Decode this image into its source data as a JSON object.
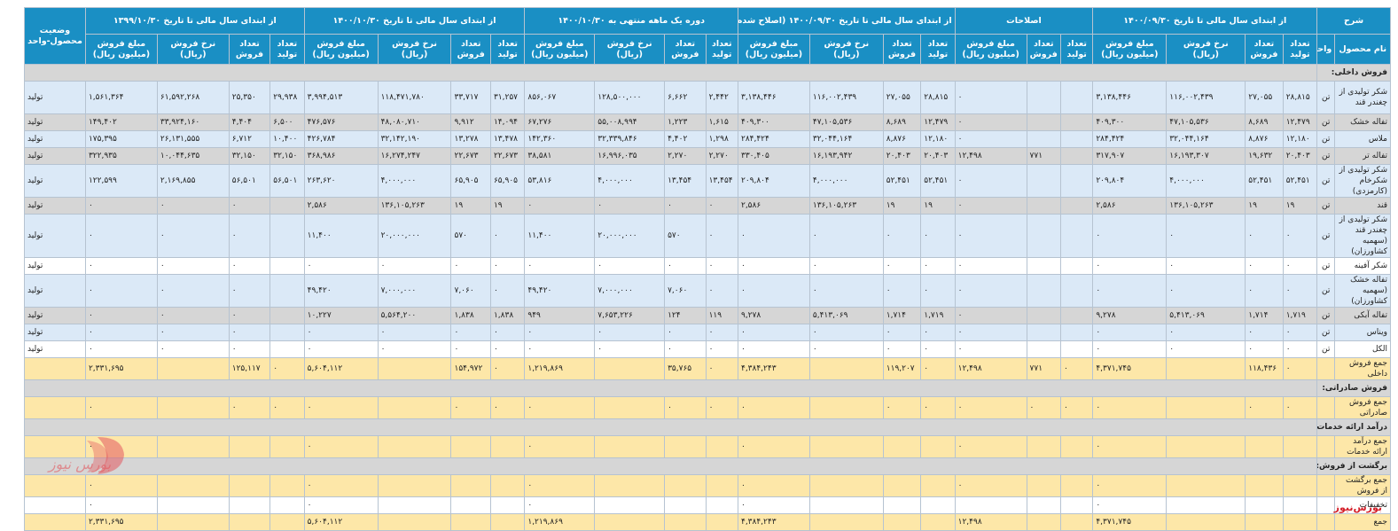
{
  "header": {
    "group_title_sharh": "شرح",
    "group_title_status": "وضعیت محصول-واحد",
    "groups": [
      "از ابتدای سال مالی تا تاریخ ۱۴۰۰/۰۹/۳۰",
      "اصلاحات",
      "از ابتدای سال مالی تا تاریخ ۱۴۰۰/۰۹/۳۰ (اصلاح شده)",
      "دوره یک ماهه منتهی به ۱۴۰۰/۱۰/۳۰",
      "از ابتدای سال مالی تا تاریخ ۱۴۰۰/۱۰/۳۰",
      "از ابتدای سال مالی تا تاریخ ۱۳۹۹/۱۰/۳۰"
    ],
    "col_product": "نام محصول",
    "col_unit": "واحد",
    "col_prod_qty": "تعداد تولید",
    "col_sale_qty": "تعداد فروش",
    "col_rate": "نرخ فروش (ریال)",
    "col_amount": "مبلغ فروش (میلیون ریال)"
  },
  "sections": {
    "domestic": "فروش داخلی:",
    "export": "فروش صادراتی:",
    "services": "درآمد ارائه خدمات:",
    "returns": "برگشت از فروش:"
  },
  "rows": [
    {
      "name": "شکر تولیدی از چغندر قند",
      "unit": "تن",
      "v": [
        "۲۸,۸۱۵",
        "۲۷,۰۵۵",
        "۱۱۶,۰۰۲,۴۳۹",
        "۳,۱۳۸,۴۴۶",
        "",
        "",
        "۰",
        "۲۸,۸۱۵",
        "۲۷,۰۵۵",
        "۱۱۶,۰۰۲,۴۳۹",
        "۳,۱۳۸,۴۴۶",
        "۲,۴۴۲",
        "۶,۶۶۲",
        "۱۲۸,۵۰۰,۰۰۰",
        "۸۵۶,۰۶۷",
        "۳۱,۲۵۷",
        "۳۳,۷۱۷",
        "۱۱۸,۴۷۱,۷۸۰",
        "۳,۹۹۴,۵۱۳",
        "۲۹,۹۳۸",
        "۲۵,۳۵۰",
        "۶۱,۵۹۲,۲۶۸",
        "۱,۵۶۱,۳۶۴"
      ],
      "status": "تولید"
    },
    {
      "name": "تفاله خشک",
      "unit": "تن",
      "v": [
        "۱۲,۴۷۹",
        "۸,۶۸۹",
        "۴۷,۱۰۵,۵۳۶",
        "۴۰۹,۳۰۰",
        "",
        "",
        "۰",
        "۱۲,۴۷۹",
        "۸,۶۸۹",
        "۴۷,۱۰۵,۵۳۶",
        "۴۰۹,۳۰۰",
        "۱,۶۱۵",
        "۱,۲۲۳",
        "۵۵,۰۰۸,۹۹۴",
        "۶۷,۲۷۶",
        "۱۴,۰۹۴",
        "۹,۹۱۲",
        "۴۸,۰۸۰,۷۱۰",
        "۴۷۶,۵۷۶",
        "۶,۵۰۰",
        "۴,۴۰۴",
        "۳۳,۹۲۴,۱۶۰",
        "۱۴۹,۴۰۲"
      ],
      "status": "تولید"
    },
    {
      "name": "ملاس",
      "unit": "تن",
      "v": [
        "۱۲,۱۸۰",
        "۸,۸۷۶",
        "۳۲,۰۴۴,۱۶۴",
        "۲۸۴,۴۲۴",
        "",
        "",
        "۰",
        "۱۲,۱۸۰",
        "۸,۸۷۶",
        "۳۲,۰۴۴,۱۶۴",
        "۲۸۴,۴۲۴",
        "۱,۲۹۸",
        "۴,۴۰۲",
        "۳۲,۳۳۹,۸۴۶",
        "۱۴۲,۳۶۰",
        "۱۳,۴۷۸",
        "۱۳,۲۷۸",
        "۳۲,۱۴۲,۱۹۰",
        "۴۲۶,۷۸۴",
        "۱۰,۴۰۰",
        "۶,۷۱۲",
        "۲۶,۱۳۱,۵۵۵",
        "۱۷۵,۳۹۵"
      ],
      "status": "تولید"
    },
    {
      "name": "تفاله تر",
      "unit": "تن",
      "v": [
        "۲۰,۴۰۳",
        "۱۹,۶۳۲",
        "۱۶,۱۹۳,۳۰۷",
        "۳۱۷,۹۰۷",
        "",
        "۷۷۱",
        "۱۲,۴۹۸",
        "۲۰,۴۰۳",
        "۲۰,۴۰۳",
        "۱۶,۱۹۳,۹۴۲",
        "۳۳۰,۴۰۵",
        "۲,۲۷۰",
        "۲,۲۷۰",
        "۱۶,۹۹۶,۰۳۵",
        "۳۸,۵۸۱",
        "۲۲,۶۷۳",
        "۲۲,۶۷۳",
        "۱۶,۲۷۴,۲۴۷",
        "۳۶۸,۹۸۶",
        "۳۲,۱۵۰",
        "۳۲,۱۵۰",
        "۱۰,۰۴۴,۶۳۵",
        "۳۲۲,۹۳۵"
      ],
      "status": "تولید"
    },
    {
      "name": "شکر تولیدی از شکرخام (کارمزدی)",
      "unit": "تن",
      "v": [
        "۵۲,۴۵۱",
        "۵۲,۴۵۱",
        "۴,۰۰۰,۰۰۰",
        "۲۰۹,۸۰۴",
        "",
        "",
        "۰",
        "۵۲,۴۵۱",
        "۵۲,۴۵۱",
        "۴,۰۰۰,۰۰۰",
        "۲۰۹,۸۰۴",
        "۱۳,۴۵۴",
        "۱۳,۴۵۴",
        "۴,۰۰۰,۰۰۰",
        "۵۳,۸۱۶",
        "۶۵,۹۰۵",
        "۶۵,۹۰۵",
        "۴,۰۰۰,۰۰۰",
        "۲۶۳,۶۲۰",
        "۵۶,۵۰۱",
        "۵۶,۵۰۱",
        "۲,۱۶۹,۸۵۵",
        "۱۲۲,۵۹۹"
      ],
      "status": "تولید"
    },
    {
      "name": "قند",
      "unit": "تن",
      "v": [
        "۱۹",
        "۱۹",
        "۱۳۶,۱۰۵,۲۶۳",
        "۲,۵۸۶",
        "",
        "",
        "۰",
        "۱۹",
        "۱۹",
        "۱۳۶,۱۰۵,۲۶۳",
        "۲,۵۸۶",
        "۰",
        "۰",
        "۰",
        "۰",
        "۱۹",
        "۱۹",
        "۱۳۶,۱۰۵,۲۶۳",
        "۲,۵۸۶",
        "",
        "۰",
        "۰",
        "۰"
      ],
      "status": "تولید"
    },
    {
      "name": "شکر تولیدی از چغندر قند (سهمیه کشاورزان)",
      "unit": "تن",
      "v": [
        "۰",
        "۰",
        "۰",
        "۰",
        "",
        "",
        "۰",
        "۰",
        "۰",
        "۰",
        "۰",
        "۰",
        "۵۷۰",
        "۲۰,۰۰۰,۰۰۰",
        "۱۱,۴۰۰",
        "۰",
        "۵۷۰",
        "۲۰,۰۰۰,۰۰۰",
        "۱۱,۴۰۰",
        "",
        "۰",
        "۰",
        "۰"
      ],
      "status": "تولید"
    },
    {
      "name": "شکر آفینه",
      "unit": "تن",
      "v": [
        "۰",
        "۰",
        "۰",
        "۰",
        "",
        "",
        "۰",
        "۰",
        "۰",
        "۰",
        "۰",
        "۰",
        "۰",
        "۰",
        "۰",
        "۰",
        "۰",
        "۰",
        "۰",
        "",
        "۰",
        "۰",
        "۰"
      ],
      "status": "تولید"
    },
    {
      "name": "تفاله خشک (سهمیه کشاورزان)",
      "unit": "تن",
      "v": [
        "۰",
        "۰",
        "۰",
        "۰",
        "",
        "",
        "۰",
        "۰",
        "۰",
        "۰",
        "۰",
        "۰",
        "۷,۰۶۰",
        "۷,۰۰۰,۰۰۰",
        "۴۹,۴۲۰",
        "۰",
        "۷,۰۶۰",
        "۷,۰۰۰,۰۰۰",
        "۴۹,۴۲۰",
        "",
        "۰",
        "۰",
        "۰"
      ],
      "status": "تولید"
    },
    {
      "name": "تفاله آبکی",
      "unit": "تن",
      "v": [
        "۱,۷۱۹",
        "۱,۷۱۴",
        "۵,۴۱۳,۰۶۹",
        "۹,۲۷۸",
        "",
        "",
        "۰",
        "۱,۷۱۹",
        "۱,۷۱۴",
        "۵,۴۱۳,۰۶۹",
        "۹,۲۷۸",
        "۱۱۹",
        "۱۲۴",
        "۷,۶۵۳,۲۲۶",
        "۹۴۹",
        "۱,۸۳۸",
        "۱,۸۳۸",
        "۵,۵۶۴,۲۰۰",
        "۱۰,۲۲۷",
        "",
        "۰",
        "۰",
        "۰"
      ],
      "status": "تولید"
    },
    {
      "name": "ویناس",
      "unit": "تن",
      "v": [
        "۰",
        "۰",
        "۰",
        "۰",
        "",
        "",
        "۰",
        "۰",
        "۰",
        "۰",
        "۰",
        "۰",
        "۰",
        "۰",
        "۰",
        "۰",
        "۰",
        "۰",
        "۰",
        "",
        "۰",
        "۰",
        "۰"
      ],
      "status": "تولید"
    },
    {
      "name": "الکل",
      "unit": "تن",
      "v": [
        "۰",
        "۰",
        "۰",
        "۰",
        "",
        "",
        "۰",
        "۰",
        "۰",
        "۰",
        "۰",
        "۰",
        "۰",
        "۰",
        "۰",
        "۰",
        "۰",
        "۰",
        "۰",
        "",
        "۰",
        "۰",
        "۰"
      ],
      "status": "تولید"
    }
  ],
  "totals": {
    "domestic": {
      "name": "جمع فروش داخلی",
      "v": [
        "۰",
        "۱۱۸,۴۳۶",
        "",
        "۴,۳۷۱,۷۴۵",
        "۰",
        "۷۷۱",
        "۱۲,۴۹۸",
        "۰",
        "۱۱۹,۲۰۷",
        "",
        "۴,۳۸۴,۲۴۳",
        "۰",
        "۳۵,۷۶۵",
        "",
        "۱,۲۱۹,۸۶۹",
        "۰",
        "۱۵۴,۹۷۲",
        "",
        "۵,۶۰۴,۱۱۲",
        "۰",
        "۱۲۵,۱۱۷",
        "",
        "۲,۳۳۱,۶۹۵"
      ]
    },
    "export": {
      "name": "جمع فروش صادراتی",
      "v": [
        "۰",
        "۰",
        "",
        "۰",
        "۰",
        "۰",
        "۰",
        "۰",
        "۰",
        "",
        "۰",
        "۰",
        "۰",
        "",
        "۰",
        "۰",
        "۰",
        "",
        "۰",
        "۰",
        "۰",
        "",
        "۰"
      ]
    },
    "services": {
      "name": "جمع درآمد ارائه خدمات",
      "v": [
        "",
        "",
        "",
        "۰",
        "",
        "",
        "۰",
        "",
        "",
        "",
        "۰",
        "",
        "",
        "",
        "۰",
        "",
        "",
        "",
        "۰",
        "",
        "",
        "",
        "۰"
      ]
    },
    "returns": {
      "name": "جمع برگشت از فروش",
      "v": [
        "",
        "",
        "",
        "۰",
        "",
        "",
        "۰",
        "",
        "",
        "",
        "۰",
        "",
        "",
        "",
        "۰",
        "",
        "",
        "",
        "۰",
        "",
        "",
        "",
        "۰"
      ]
    },
    "discounts": {
      "name": "تخفیفات",
      "v": [
        "",
        "",
        "",
        "۰",
        "",
        "",
        "",
        "",
        "",
        "",
        "۰",
        "",
        "",
        "",
        "۰",
        "",
        "",
        "",
        "۰",
        "",
        "",
        "",
        "۰"
      ]
    },
    "grand": {
      "name": "جمع",
      "v": [
        "",
        "",
        "",
        "۴,۳۷۱,۷۴۵",
        "",
        "",
        "۱۲,۴۹۸",
        "",
        "",
        "",
        "۴,۳۸۴,۲۴۳",
        "",
        "",
        "",
        "۱,۲۱۹,۸۶۹",
        "",
        "",
        "",
        "۵,۶۰۴,۱۱۲",
        "",
        "",
        "",
        "۲,۳۳۱,۶۹۵"
      ]
    }
  },
  "watermark": {
    "logo_text": "بورس نیوز",
    "footer_text": "بورس‌نیوز",
    "color": "#d4202a"
  }
}
